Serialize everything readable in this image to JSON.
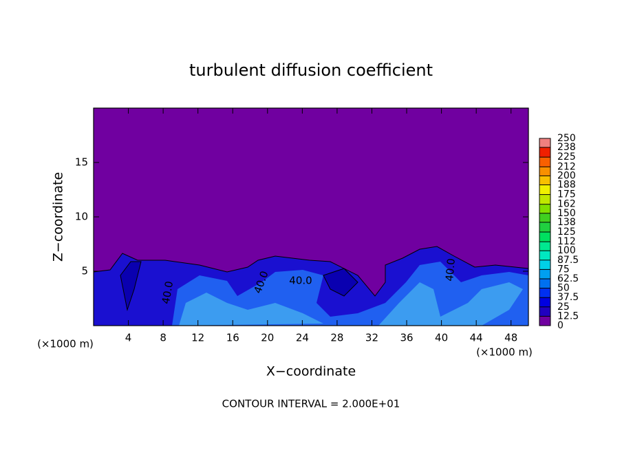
{
  "chart_data": {
    "type": "contour",
    "title": "turbulent diffusion coefficient",
    "xlabel": "X−coordinate",
    "ylabel": "Z−coordinate",
    "x_unit_left": "(×1000 m)",
    "x_unit_right": "(×1000 m)",
    "xlim": [
      0,
      50
    ],
    "xticks": [
      4,
      8,
      12,
      16,
      20,
      24,
      28,
      32,
      36,
      40,
      44,
      48
    ],
    "ylim": [
      0,
      20
    ],
    "yticks": [
      5,
      10,
      15
    ],
    "contour_labels": [
      "40.0",
      "40.0",
      "40.0",
      "40.0"
    ],
    "footer": "CONTOUR INTERVAL = 2.000E+01",
    "colorbar": {
      "ticks": [
        0,
        12.5,
        25,
        37.5,
        50,
        62.5,
        75,
        87.5,
        100,
        112,
        125,
        138,
        150,
        162,
        175,
        188,
        200,
        212,
        225,
        238,
        250
      ],
      "colors": [
        "#7000a0",
        "#2000c0",
        "#0000e0",
        "#0030f0",
        "#0070f0",
        "#00a0f0",
        "#00d0e8",
        "#00e8c0",
        "#00e890",
        "#00e060",
        "#20d040",
        "#40d020",
        "#80e000",
        "#c0e800",
        "#f0f000",
        "#f8c000",
        "#f89000",
        "#f86000",
        "#f02000",
        "#f08080"
      ]
    }
  }
}
